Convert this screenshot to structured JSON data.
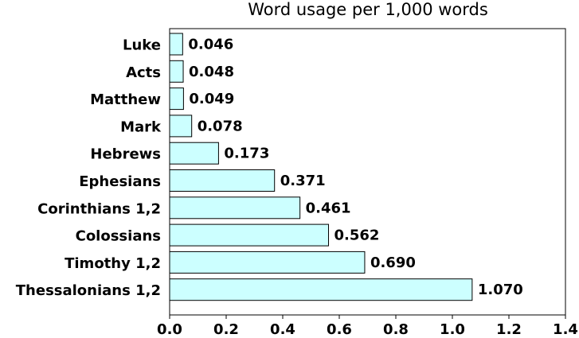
{
  "chart_data": {
    "type": "bar",
    "orientation": "horizontal",
    "title": "Word usage per 1,000 words",
    "xlabel": "",
    "ylabel": "",
    "categories": [
      "Luke",
      "Acts",
      "Matthew",
      "Mark",
      "Hebrews",
      "Ephesians",
      "Corinthians 1,2",
      "Colossians",
      "Timothy 1,2",
      "Thessalonians 1,2"
    ],
    "values": [
      0.046,
      0.048,
      0.049,
      0.078,
      0.173,
      0.371,
      0.461,
      0.562,
      0.69,
      1.07
    ],
    "value_labels": [
      "0.046",
      "0.048",
      "0.049",
      "0.078",
      "0.173",
      "0.371",
      "0.461",
      "0.562",
      "0.690",
      "1.070"
    ],
    "xlim": [
      0,
      1.4
    ],
    "xticks": [
      0.0,
      0.2,
      0.4,
      0.6,
      0.8,
      1.0,
      1.2,
      1.4
    ],
    "xtick_labels": [
      "0.0",
      "0.2",
      "0.4",
      "0.6",
      "0.8",
      "1.0",
      "1.2",
      "1.4"
    ],
    "grid": false,
    "bar_color": "#ccffff",
    "bar_edge_color": "#000000"
  }
}
